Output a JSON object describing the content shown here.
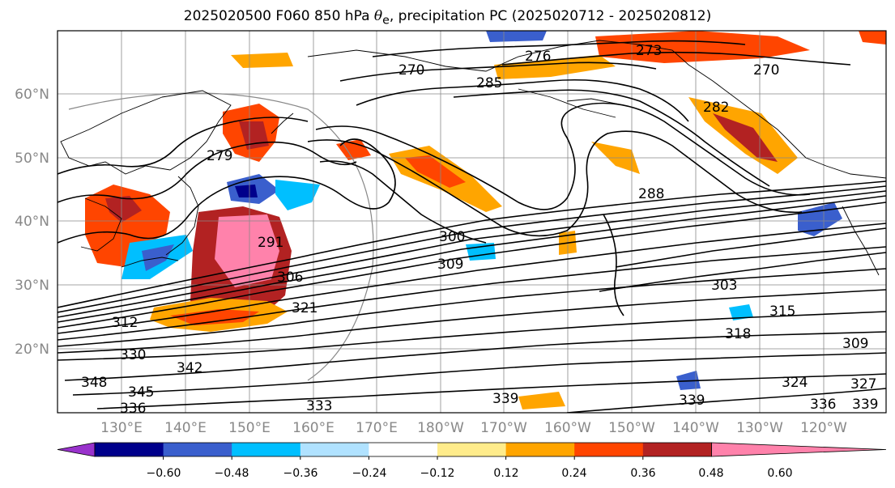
{
  "title": {
    "prefix": "2025020500 F060 850 hPa ",
    "symbol": "θ",
    "subscript": "e",
    "suffix": ", precipitation PC (2025020712 - 2025020812)"
  },
  "map": {
    "lat_labels": [
      "60°N",
      "50°N",
      "40°N",
      "30°N",
      "20°N"
    ],
    "lon_labels": [
      "130°E",
      "140°E",
      "150°E",
      "160°E",
      "170°E",
      "180°W",
      "170°W",
      "160°W",
      "150°W",
      "140°W",
      "130°W",
      "120°W"
    ],
    "axis_label_color": "#888888",
    "contour_labels": [
      "276",
      "273",
      "270",
      "285",
      "270",
      "279",
      "282",
      "288",
      "291",
      "300",
      "309",
      "306",
      "303",
      "321",
      "312",
      "318",
      "315",
      "330",
      "342",
      "339",
      "324",
      "327",
      "345",
      "348",
      "336",
      "333",
      "309",
      "339",
      "336",
      "339"
    ]
  },
  "colorbar": {
    "ticks": [
      "−0.60",
      "−0.48",
      "−0.36",
      "−0.24",
      "−0.12",
      "0.12",
      "0.24",
      "0.36",
      "0.48",
      "0.60"
    ],
    "colors": [
      "#9932cc",
      "#00008b",
      "#3a5fcd",
      "#00bfff",
      "#b0e2ff",
      "#ffffff",
      "#ffec8b",
      "#ffa500",
      "#ff4500",
      "#b22222",
      "#ff82ab"
    ]
  }
}
